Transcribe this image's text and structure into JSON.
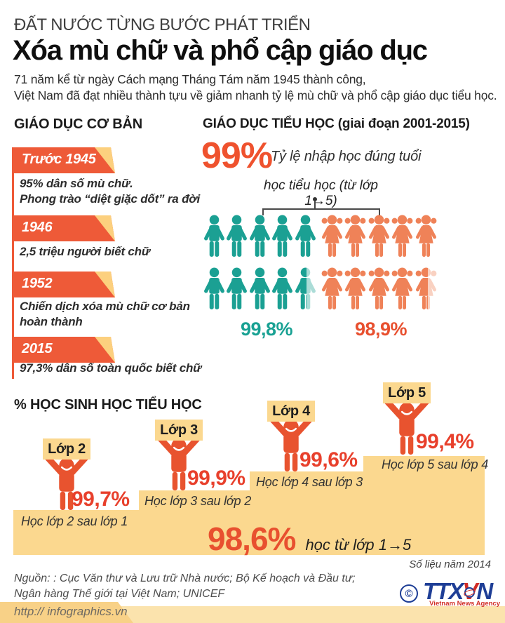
{
  "header": {
    "kicker": "ĐẤT NƯỚC TỪNG BƯỚC PHÁT TRIỂN",
    "title": "Xóa mù chữ và phổ cập giáo dục",
    "subtitle": "71 năm kể từ ngày Cách mạng Tháng Tám năm 1945 thành công,\nViệt Nam đã đạt nhiều thành tựu về giảm nhanh tỷ lệ mù chữ và phổ cập giáo dục tiểu học."
  },
  "basic_education": {
    "heading": "GIÁO DỤC CƠ BẢN",
    "timeline": [
      {
        "year": "Trước 1945",
        "text": "95% dân số mù chữ.\nPhong trào “diệt giặc dốt” ra đời"
      },
      {
        "year": "1946",
        "text": "2,5 triệu người biết chữ"
      },
      {
        "year": "1952",
        "text": "Chiến dịch xóa mù chữ cơ bản\nhoàn thành"
      },
      {
        "year": "2015",
        "text": "97,3% dân số toàn quốc biết chữ"
      }
    ]
  },
  "primary_education": {
    "heading": "GIÁO DỤC TIỂU HỌC (giai đoạn 2001-2015)",
    "enrollment_value": "99%",
    "enrollment_caption": "Tỷ lệ nhập học đúng tuổi",
    "bracket_label": "học tiểu học (từ lớp 1→5)",
    "boys_icons": 10,
    "girls_icons": 10,
    "boys_percent": "99,8%",
    "girls_percent": "98,9%"
  },
  "grade_progress": {
    "heading": "% HỌC SINH HỌC TIỂU HỌC",
    "steps": [
      {
        "grade": "Lớp 2",
        "percent": "99,7%",
        "caption": "Học lớp 2 sau lớp 1"
      },
      {
        "grade": "Lớp 3",
        "percent": "99,9%",
        "caption": "Học lớp 3 sau lớp 2"
      },
      {
        "grade": "Lớp 4",
        "percent": "99,6%",
        "caption": "Học lớp 4 sau lớp 3"
      },
      {
        "grade": "Lớp 5",
        "percent": "99,4%",
        "caption": "Học lớp 5 sau lớp 4"
      }
    ],
    "total_percent": "98,6%",
    "total_caption": "học từ lớp 1→5",
    "note": "Số liệu năm 2014"
  },
  "footer": {
    "source": "Nguồn: : Cục Văn thư và Lưu trữ Nhà nước; Bộ Kế hoạch và Đầu tư;\nNgân hàng Thế giới tại Việt Nam; UNICEF",
    "url": "http:// infographics.vn",
    "logo": {
      "copyright": "©",
      "part1": "TTX",
      "part2": "V",
      "part3": "N",
      "tagline": "Vietnam News Agency"
    }
  },
  "colors": {
    "ribbon_orange": "#ee5a38",
    "ribbon_fold_yellow": "#fcd07e",
    "boy_teal": "#1ba093",
    "girl_orange": "#ef8258",
    "step_yellow": "#fbd88f",
    "percent_red": "#e8402c",
    "big_number_orange": "#ef522e",
    "logo_blue": "#1e3e96",
    "logo_red": "#d22d26"
  },
  "chart_data": [
    {
      "type": "timeline",
      "title": "GIÁO DỤC CƠ BẢN",
      "events": [
        {
          "period": "Trước 1945",
          "description": "95% dân số mù chữ. Phong trào “diệt giặc dốt” ra đời"
        },
        {
          "period": "1946",
          "description": "2,5 triệu người biết chữ",
          "value": 2.5,
          "unit": "triệu người biết chữ"
        },
        {
          "period": "1952",
          "description": "Chiến dịch xóa mù chữ cơ bản hoàn thành"
        },
        {
          "period": "2015",
          "description": "97,3% dân số toàn quốc biết chữ",
          "value": 97.3,
          "unit": "% dân số toàn quốc biết chữ"
        }
      ]
    },
    {
      "type": "pictograph",
      "title": "GIÁO DỤC TIỂU HỌC (giai đoạn 2001-2015)",
      "enrollment_rate": {
        "value": 99,
        "label": "99%",
        "caption": "Tỷ lệ nhập học đúng tuổi"
      },
      "annotation": "học tiểu học (từ lớp 1→5)",
      "series": [
        {
          "name": "boys",
          "value": 99.8,
          "label": "99,8%",
          "icons": 10,
          "color": "#1ba093"
        },
        {
          "name": "girls",
          "value": 98.9,
          "label": "98,9%",
          "icons": 10,
          "color": "#ef8258"
        }
      ]
    },
    {
      "type": "bar",
      "title": "% HỌC SINH HỌC TIỂU HỌC",
      "categories": [
        "Lớp 2",
        "Lớp 3",
        "Lớp 4",
        "Lớp 5"
      ],
      "values": [
        99.7,
        99.9,
        99.6,
        99.4
      ],
      "captions": [
        "Học lớp 2 sau lớp 1",
        "Học lớp 3 sau lớp 2",
        "Học lớp 4 sau lớp 3",
        "Học lớp 5 sau lớp 4"
      ],
      "total": {
        "value": 98.6,
        "label": "98,6%",
        "caption": "học từ lớp 1→5"
      },
      "note": "Số liệu năm 2014",
      "ylim": [
        0,
        100
      ]
    }
  ]
}
